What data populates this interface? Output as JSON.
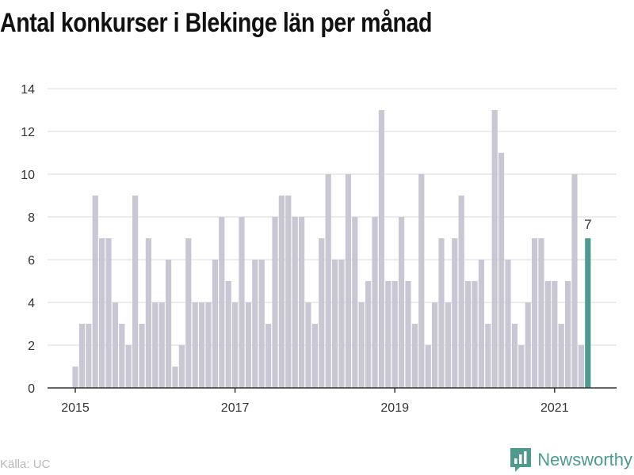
{
  "title": "Antal konkurser i Blekinge län per månad",
  "source": "Källa: UC",
  "brand": {
    "name": "Newsworthy",
    "icon": "bar-chart-speech-icon",
    "color": "#4f9a8e"
  },
  "colors": {
    "bar": "#c8c7d3",
    "highlight": "#4f9a8e",
    "grid": "#d9d9d9",
    "axis": "#333333",
    "text": "#333333"
  },
  "chart_data": {
    "type": "bar",
    "title": "Antal konkurser i Blekinge län per månad",
    "xlabel": "",
    "ylabel": "",
    "ylim": [
      0,
      14
    ],
    "yticks": [
      0,
      2,
      4,
      6,
      8,
      10,
      12,
      14
    ],
    "xticks": [
      "2015",
      "2017",
      "2019",
      "2021"
    ],
    "grid": true,
    "start": "2015-01",
    "end": "2021-06",
    "highlight_label": "7",
    "values": [
      1,
      3,
      3,
      9,
      7,
      7,
      4,
      3,
      2,
      9,
      3,
      7,
      4,
      4,
      6,
      1,
      2,
      7,
      4,
      4,
      4,
      6,
      8,
      5,
      4,
      8,
      4,
      6,
      6,
      3,
      8,
      9,
      9,
      8,
      8,
      4,
      3,
      7,
      10,
      6,
      6,
      10,
      8,
      4,
      5,
      8,
      13,
      5,
      5,
      8,
      5,
      3,
      10,
      2,
      4,
      7,
      4,
      7,
      9,
      5,
      5,
      6,
      3,
      13,
      11,
      6,
      3,
      2,
      4,
      7,
      7,
      5,
      5,
      3,
      5,
      10,
      2,
      7
    ]
  }
}
